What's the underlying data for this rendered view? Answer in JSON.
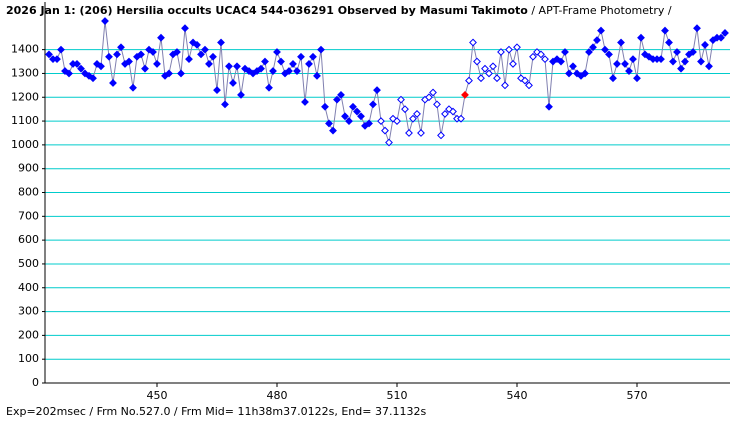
{
  "chart_data": {
    "type": "line",
    "title": "2026 Jan 1: (206) Hersilia occults UCAC4 544-036291 Observed by Masumi Takimoto",
    "subtitle": " / APT-Frame Photometry /",
    "footer": "Exp=202msec / Frm No.527.0 / Frm Mid= 11h38m37.0122s, End= 37.1132s",
    "x": [
      423,
      424,
      425,
      426,
      427,
      428,
      429,
      430,
      431,
      432,
      433,
      434,
      435,
      436,
      437,
      438,
      439,
      440,
      441,
      442,
      443,
      444,
      445,
      446,
      447,
      448,
      449,
      450,
      451,
      452,
      453,
      454,
      455,
      456,
      457,
      458,
      459,
      460,
      461,
      462,
      463,
      464,
      465,
      466,
      467,
      468,
      469,
      470,
      471,
      472,
      473,
      474,
      475,
      476,
      477,
      478,
      479,
      480,
      481,
      482,
      483,
      484,
      485,
      486,
      487,
      488,
      489,
      490,
      491,
      492,
      493,
      494,
      495,
      496,
      497,
      498,
      499,
      500,
      501,
      502,
      503,
      504,
      505,
      506,
      507,
      508,
      509,
      510,
      511,
      512,
      513,
      514,
      515,
      516,
      517,
      518,
      519,
      520,
      521,
      522,
      523,
      524,
      525,
      526,
      527,
      528,
      529,
      530,
      531,
      532,
      533,
      534,
      535,
      536,
      537,
      538,
      539,
      540,
      541,
      542,
      543,
      544,
      545,
      546,
      547,
      548,
      549,
      550,
      551,
      552,
      553,
      554,
      555,
      556,
      557,
      558,
      559,
      560,
      561,
      562,
      563,
      564,
      565,
      566,
      567,
      568,
      569,
      570,
      571,
      572,
      573,
      574,
      575,
      576,
      577,
      578,
      579,
      580,
      581,
      582,
      583,
      584,
      585,
      586,
      587,
      588,
      589,
      590,
      591,
      592
    ],
    "values": [
      1380,
      1360,
      1360,
      1400,
      1310,
      1300,
      1340,
      1340,
      1320,
      1300,
      1290,
      1280,
      1340,
      1330,
      1520,
      1370,
      1260,
      1380,
      1410,
      1340,
      1350,
      1240,
      1370,
      1380,
      1320,
      1400,
      1390,
      1340,
      1450,
      1290,
      1300,
      1380,
      1390,
      1300,
      1490,
      1360,
      1430,
      1420,
      1380,
      1400,
      1340,
      1370,
      1230,
      1430,
      1170,
      1330,
      1260,
      1330,
      1210,
      1320,
      1310,
      1300,
      1310,
      1320,
      1350,
      1240,
      1310,
      1390,
      1350,
      1300,
      1310,
      1340,
      1310,
      1370,
      1180,
      1340,
      1370,
      1290,
      1400,
      1160,
      1090,
      1060,
      1190,
      1210,
      1120,
      1100,
      1160,
      1140,
      1120,
      1080,
      1090,
      1170,
      1230,
      1100,
      1060,
      1010,
      1110,
      1100,
      1190,
      1150,
      1050,
      1110,
      1130,
      1050,
      1190,
      1200,
      1220,
      1170,
      1040,
      1130,
      1150,
      1140,
      1110,
      1110,
      1210,
      1270,
      1430,
      1350,
      1280,
      1320,
      1300,
      1330,
      1280,
      1390,
      1250,
      1400,
      1340,
      1410,
      1280,
      1270,
      1250,
      1370,
      1390,
      1380,
      1360,
      1160,
      1350,
      1360,
      1350,
      1390,
      1300,
      1330,
      1300,
      1290,
      1300,
      1390,
      1410,
      1440,
      1480,
      1400,
      1380,
      1280,
      1340,
      1430,
      1340,
      1310,
      1360,
      1280,
      1450,
      1380,
      1370,
      1360,
      1360,
      1360,
      1480,
      1430,
      1350,
      1390,
      1320,
      1350,
      1380,
      1390,
      1490,
      1350,
      1420,
      1330,
      1440,
      1450,
      1450,
      1470
    ],
    "marker_fill": [
      "#0000ff",
      "#0000ff",
      "#0000ff",
      "#0000ff",
      "#0000ff",
      "#0000ff",
      "#0000ff",
      "#0000ff",
      "#0000ff",
      "#0000ff",
      "#0000ff",
      "#0000ff",
      "#0000ff",
      "#0000ff",
      "#0000ff",
      "#0000ff",
      "#0000ff",
      "#0000ff",
      "#0000ff",
      "#0000ff",
      "#0000ff",
      "#0000ff",
      "#0000ff",
      "#0000ff",
      "#0000ff",
      "#0000ff",
      "#0000ff",
      "#0000ff",
      "#0000ff",
      "#0000ff",
      "#0000ff",
      "#0000ff",
      "#0000ff",
      "#0000ff",
      "#0000ff",
      "#0000ff",
      "#0000ff",
      "#0000ff",
      "#0000ff",
      "#0000ff",
      "#0000ff",
      "#0000ff",
      "#0000ff",
      "#0000ff",
      "#0000ff",
      "#0000ff",
      "#0000ff",
      "#0000ff",
      "#0000ff",
      "#0000ff",
      "#0000ff",
      "#0000ff",
      "#0000ff",
      "#0000ff",
      "#0000ff",
      "#0000ff",
      "#0000ff",
      "#0000ff",
      "#0000ff",
      "#0000ff",
      "#0000ff",
      "#0000ff",
      "#0000ff",
      "#0000ff",
      "#0000ff",
      "#0000ff",
      "#0000ff",
      "#0000ff",
      "#0000ff",
      "#0000ff",
      "#0000ff",
      "#0000ff",
      "#0000ff",
      "#0000ff",
      "#0000ff",
      "#0000ff",
      "#0000ff",
      "#0000ff",
      "#0000ff",
      "#0000ff",
      "#0000ff",
      "#0000ff",
      "#0000ff",
      "#ffffff",
      "#ffffff",
      "#ffffff",
      "#ffffff",
      "#ffffff",
      "#ffffff",
      "#ffffff",
      "#ffffff",
      "#ffffff",
      "#ffffff",
      "#ffffff",
      "#ffffff",
      "#ffffff",
      "#ffffff",
      "#ffffff",
      "#ffffff",
      "#ffffff",
      "#ffffff",
      "#ffffff",
      "#ffffff",
      "#ffffff",
      "#ff0000",
      "#ffffff",
      "#ffffff",
      "#ffffff",
      "#ffffff",
      "#ffffff",
      "#ffffff",
      "#ffffff",
      "#ffffff",
      "#ffffff",
      "#ffffff",
      "#ffffff",
      "#ffffff",
      "#ffffff",
      "#ffffff",
      "#ffffff",
      "#ffffff",
      "#ffffff",
      "#ffffff",
      "#ffffff",
      "#ffffff",
      "#0000ff",
      "#0000ff",
      "#0000ff",
      "#0000ff",
      "#0000ff",
      "#0000ff",
      "#0000ff",
      "#0000ff",
      "#0000ff",
      "#0000ff",
      "#0000ff",
      "#0000ff",
      "#0000ff",
      "#0000ff",
      "#0000ff",
      "#0000ff",
      "#0000ff",
      "#0000ff",
      "#0000ff",
      "#0000ff",
      "#0000ff",
      "#0000ff",
      "#0000ff",
      "#0000ff",
      "#0000ff",
      "#0000ff",
      "#0000ff",
      "#0000ff",
      "#0000ff",
      "#0000ff",
      "#0000ff",
      "#0000ff",
      "#0000ff",
      "#0000ff",
      "#0000ff",
      "#0000ff",
      "#0000ff",
      "#0000ff",
      "#0000ff",
      "#0000ff",
      "#0000ff",
      "#0000ff",
      "#0000ff",
      "#0000ff",
      "#0000ff"
    ],
    "marker_stroke": "#0000ff",
    "line_color": "#8080b0",
    "grid_color": "#00cccc",
    "xlim": [
      422,
      593.25
    ],
    "ylim": [
      0,
      1600
    ],
    "xticks": [
      450,
      480,
      510,
      540,
      570
    ],
    "yticks": [
      0,
      100,
      200,
      300,
      400,
      500,
      600,
      700,
      800,
      900,
      1000,
      1100,
      1200,
      1300,
      1400
    ],
    "grid": true
  }
}
